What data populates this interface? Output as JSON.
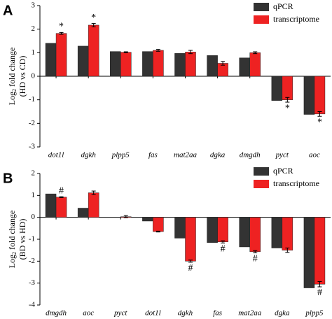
{
  "chart_data": [
    {
      "type": "bar",
      "panel_label": "A",
      "ylabel": {
        "base": "Log",
        "sub": "2",
        "rest": " fold change",
        "line2": "(HD vs CD)"
      },
      "categories": [
        "dot1l",
        "dgkh",
        "plpp5",
        "fas",
        "mat2aa",
        "dgka",
        "dmgdh",
        "pyct",
        "aoc"
      ],
      "series": [
        {
          "name": "qPCR",
          "color": "#333333",
          "values": [
            1.4,
            1.28,
            1.05,
            1.05,
            0.97,
            0.88,
            0.78,
            -1.03,
            -1.62
          ]
        },
        {
          "name": "transcriptome",
          "color": "#ee2222",
          "values": [
            1.82,
            2.17,
            1.02,
            1.1,
            1.03,
            0.55,
            1.0,
            -1.0,
            -1.6
          ],
          "errors": [
            0.04,
            0.07,
            0.02,
            0.04,
            0.07,
            0.08,
            0.04,
            0.1,
            0.1
          ],
          "significance": [
            "*",
            "*",
            null,
            null,
            null,
            null,
            null,
            "*",
            "*"
          ]
        }
      ],
      "ylim": [
        -3,
        3
      ],
      "yticks": [
        -3,
        -2,
        -1,
        0,
        1,
        2,
        3
      ],
      "legend": "top-right"
    },
    {
      "type": "bar",
      "panel_label": "B",
      "ylabel": {
        "base": "Log",
        "sub": "2",
        "rest": " fold change",
        "line2": "(BD vs HD)"
      },
      "categories": [
        "dmgdh",
        "aoc",
        "pyct",
        "dot1l",
        "dgkh",
        "fas",
        "mat2aa",
        "dgka",
        "plpp5"
      ],
      "series": [
        {
          "name": "qPCR",
          "color": "#333333",
          "values": [
            1.07,
            0.42,
            0,
            -0.17,
            -0.95,
            -1.15,
            -1.35,
            -1.4,
            -3.22
          ]
        },
        {
          "name": "transcriptome",
          "color": "#ee2222",
          "values": [
            0.92,
            1.12,
            0.03,
            -0.65,
            -2.0,
            -1.12,
            -1.57,
            -1.5,
            -3.05
          ],
          "errors": [
            0.02,
            0.08,
            0.05,
            0.02,
            0.05,
            0.05,
            0.05,
            0.1,
            0.12
          ],
          "significance": [
            "#",
            null,
            null,
            null,
            "#",
            "#",
            "#",
            null,
            "#"
          ]
        }
      ],
      "ylim": [
        -4,
        2
      ],
      "yticks": [
        -4,
        -3,
        -2,
        -1,
        0,
        1,
        2
      ],
      "legend": "top-right"
    }
  ]
}
